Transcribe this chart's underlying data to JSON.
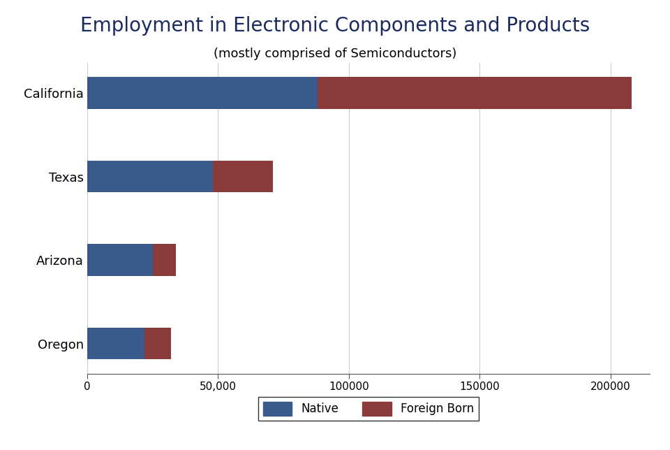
{
  "title": "Employment in Electronic Components and Products",
  "subtitle": "(mostly comprised of Semiconductors)",
  "categories": [
    "California",
    "Texas",
    "Arizona",
    "Oregon"
  ],
  "native": [
    88000,
    48000,
    25000,
    22000
  ],
  "foreign_born": [
    120000,
    23000,
    9000,
    10000
  ],
  "native_color": "#3a5a8c",
  "foreign_color": "#8b3a3a",
  "title_color": "#1a2a5e",
  "subtitle_color": "#000000",
  "background_color": "#ffffff",
  "xlim": [
    0,
    215000
  ],
  "xticks": [
    0,
    50000,
    100000,
    150000,
    200000
  ],
  "xticklabels": [
    "0",
    "50,000",
    "100000",
    "150000",
    "200000"
  ],
  "title_fontsize": 20,
  "subtitle_fontsize": 13,
  "label_fontsize": 13,
  "tick_fontsize": 11,
  "legend_fontsize": 12,
  "bar_height": 0.38
}
